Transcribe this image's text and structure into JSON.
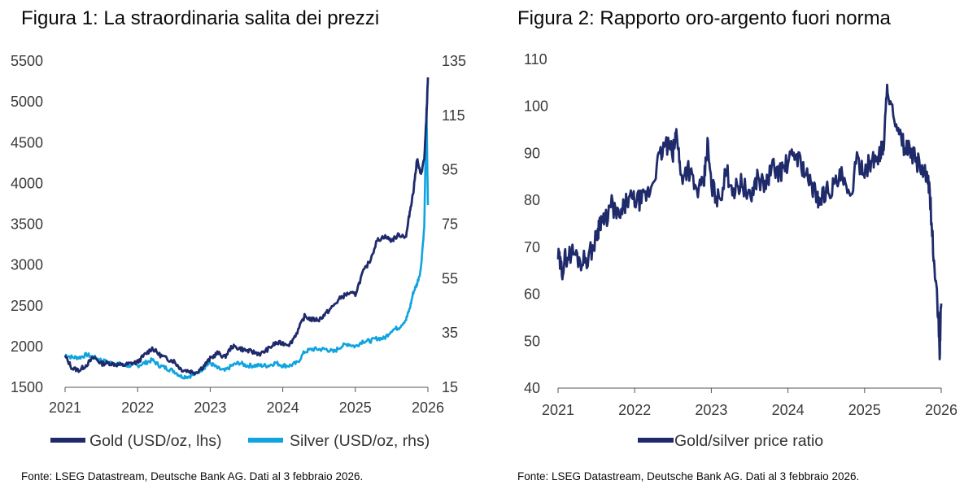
{
  "colors": {
    "gold": "#1f2a6b",
    "silver": "#0fa3df",
    "ratio": "#1f2a6b",
    "axis": "#555555"
  },
  "figure1": {
    "title": "Figura 1: La straordinaria salita dei prezzi",
    "source": "Fonte: LSEG Datastream, Deutsche Bank AG. Dati al 3 febbraio 2026.",
    "legend": {
      "gold": "Gold (USD/oz, lhs)",
      "silver": "Silver (USD/oz, rhs)"
    }
  },
  "figure2": {
    "title": "Figura 2: Rapporto oro-argento fuori norma",
    "source": "Fonte: LSEG Datastream, Deutsche Bank AG. Dati al 3 febbraio 2026.",
    "legend": {
      "ratio": "Gold/silver price ratio"
    }
  },
  "chart_data": [
    {
      "type": "line",
      "title": "Figura 1: La straordinaria salita dei prezzi",
      "x_ticks": [
        "2021",
        "2022",
        "2023",
        "2024",
        "2025",
        "2026"
      ],
      "xlim": [
        2021,
        2026
      ],
      "y_left": {
        "ticks": [
          "5500",
          "5000",
          "4500",
          "4000",
          "3500",
          "3000",
          "2500",
          "2000",
          "1500"
        ],
        "lim": [
          1500,
          5500
        ]
      },
      "y_right": {
        "ticks": [
          "135",
          "115",
          "95",
          "75",
          "55",
          "35",
          "15"
        ],
        "lim": [
          15,
          135
        ]
      },
      "series": [
        {
          "name": "Gold (USD/oz, lhs)",
          "axis": "left",
          "x": [
            2021.0,
            2021.1,
            2021.2,
            2021.3,
            2021.4,
            2021.5,
            2021.6,
            2021.7,
            2021.8,
            2021.9,
            2022.0,
            2022.1,
            2022.2,
            2022.3,
            2022.4,
            2022.5,
            2022.6,
            2022.7,
            2022.8,
            2022.9,
            2023.0,
            2023.1,
            2023.2,
            2023.3,
            2023.4,
            2023.5,
            2023.6,
            2023.7,
            2023.8,
            2023.9,
            2024.0,
            2024.1,
            2024.2,
            2024.3,
            2024.4,
            2024.5,
            2024.6,
            2024.7,
            2024.8,
            2024.9,
            2025.0,
            2025.1,
            2025.2,
            2025.3,
            2025.4,
            2025.5,
            2025.6,
            2025.7,
            2025.75,
            2025.8,
            2025.85,
            2025.9,
            2025.95,
            2025.98,
            2026.0
          ],
          "values": [
            1880,
            1730,
            1710,
            1780,
            1870,
            1790,
            1800,
            1780,
            1770,
            1790,
            1810,
            1900,
            1980,
            1900,
            1850,
            1820,
            1720,
            1700,
            1680,
            1750,
            1850,
            1920,
            1870,
            2000,
            1980,
            1950,
            1930,
            1910,
            1970,
            2040,
            2040,
            2030,
            2180,
            2370,
            2330,
            2330,
            2410,
            2500,
            2600,
            2650,
            2640,
            2900,
            3050,
            3300,
            3350,
            3300,
            3370,
            3350,
            3650,
            3900,
            4300,
            4100,
            4300,
            4800,
            5300
          ]
        },
        {
          "name": "Silver (USD/oz, rhs)",
          "axis": "right",
          "x": [
            2021.0,
            2021.1,
            2021.2,
            2021.3,
            2021.4,
            2021.5,
            2021.6,
            2021.7,
            2021.8,
            2021.9,
            2022.0,
            2022.1,
            2022.2,
            2022.3,
            2022.4,
            2022.5,
            2022.6,
            2022.7,
            2022.8,
            2022.9,
            2023.0,
            2023.1,
            2023.2,
            2023.3,
            2023.4,
            2023.5,
            2023.6,
            2023.7,
            2023.8,
            2023.9,
            2024.0,
            2024.1,
            2024.2,
            2024.3,
            2024.4,
            2024.5,
            2024.6,
            2024.7,
            2024.8,
            2024.9,
            2025.0,
            2025.1,
            2025.2,
            2025.3,
            2025.4,
            2025.5,
            2025.6,
            2025.7,
            2025.75,
            2025.8,
            2025.85,
            2025.9,
            2025.95,
            2025.98,
            2026.0
          ],
          "values": [
            27,
            26,
            26,
            27,
            26,
            25,
            24,
            24,
            23,
            23,
            23,
            24,
            25,
            23,
            22,
            21,
            19,
            19,
            20,
            22,
            24,
            22,
            21,
            23,
            24,
            23,
            23,
            23,
            23,
            24,
            23,
            23,
            24,
            28,
            29,
            29,
            29,
            28,
            30,
            31,
            30,
            32,
            32,
            33,
            33,
            36,
            37,
            40,
            44,
            50,
            53,
            58,
            74,
            118,
            82
          ]
        }
      ]
    },
    {
      "type": "line",
      "title": "Figura 2: Rapporto oro-argento fuori norma",
      "x_ticks": [
        "2021",
        "2022",
        "2023",
        "2024",
        "2025",
        "2026"
      ],
      "xlim": [
        2021,
        2026
      ],
      "y": {
        "ticks": [
          "110",
          "100",
          "90",
          "80",
          "70",
          "60",
          "50",
          "40"
        ],
        "lim": [
          40,
          110
        ]
      },
      "series": [
        {
          "name": "Gold/silver price ratio",
          "x": [
            2021.0,
            2021.05,
            2021.1,
            2021.2,
            2021.3,
            2021.4,
            2021.5,
            2021.55,
            2021.6,
            2021.7,
            2021.8,
            2021.9,
            2022.0,
            2022.1,
            2022.2,
            2022.3,
            2022.4,
            2022.5,
            2022.55,
            2022.6,
            2022.7,
            2022.8,
            2022.9,
            2022.95,
            2023.0,
            2023.1,
            2023.2,
            2023.3,
            2023.4,
            2023.5,
            2023.6,
            2023.7,
            2023.8,
            2023.9,
            2024.0,
            2024.1,
            2024.2,
            2024.3,
            2024.35,
            2024.4,
            2024.5,
            2024.6,
            2024.7,
            2024.8,
            2024.9,
            2025.0,
            2025.1,
            2025.15,
            2025.2,
            2025.25,
            2025.3,
            2025.4,
            2025.5,
            2025.6,
            2025.7,
            2025.8,
            2025.85,
            2025.9,
            2025.95,
            2025.98,
            2026.0
          ],
          "values": [
            68,
            65,
            68,
            69,
            67,
            68,
            72,
            76,
            75,
            79,
            76,
            80,
            80,
            80,
            82,
            88,
            92,
            90,
            95,
            85,
            87,
            82,
            83,
            92,
            83,
            80,
            86,
            82,
            84,
            80,
            85,
            83,
            87,
            86,
            88,
            90,
            87,
            83,
            82,
            80,
            82,
            83,
            85,
            80,
            88,
            87,
            88,
            89,
            90,
            92,
            105,
            95,
            92,
            90,
            88,
            85,
            82,
            68,
            58,
            48,
            58
          ]
        }
      ]
    }
  ]
}
